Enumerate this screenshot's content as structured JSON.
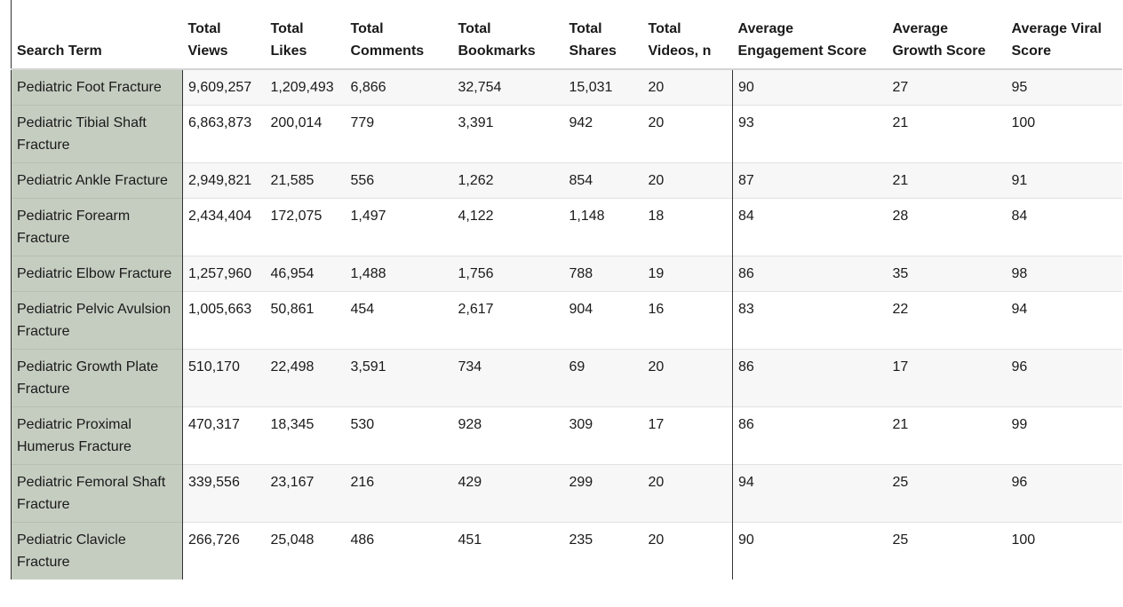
{
  "chart_data": {
    "type": "table",
    "columns": [
      "Search Term",
      "Total Views",
      "Total Likes",
      "Total Comments",
      "Total Bookmarks",
      "Total Shares",
      "Total Videos, n",
      "Average Engagement Score",
      "Average Growth Score",
      "Average Viral Score"
    ],
    "rows": [
      [
        "Pediatric Foot Fracture",
        "9,609,257",
        "1,209,493",
        "6,866",
        "32,754",
        "15,031",
        "20",
        "90",
        "27",
        "95"
      ],
      [
        "Pediatric Tibial Shaft Fracture",
        "6,863,873",
        "200,014",
        "779",
        "3,391",
        "942",
        "20",
        "93",
        "21",
        "100"
      ],
      [
        "Pediatric Ankle Fracture",
        "2,949,821",
        "21,585",
        "556",
        "1,262",
        "854",
        "20",
        "87",
        "21",
        "91"
      ],
      [
        "Pediatric Forearm Fracture",
        "2,434,404",
        "172,075",
        "1,497",
        "4,122",
        "1,148",
        "18",
        "84",
        "28",
        "84"
      ],
      [
        "Pediatric Elbow Fracture",
        "1,257,960",
        "46,954",
        "1,488",
        "1,756",
        "788",
        "19",
        "86",
        "35",
        "98"
      ],
      [
        "Pediatric Pelvic Avulsion Fracture",
        "1,005,663",
        "50,861",
        "454",
        "2,617",
        "904",
        "16",
        "83",
        "22",
        "94"
      ],
      [
        "Pediatric Growth Plate Fracture",
        "510,170",
        "22,498",
        "3,591",
        "734",
        "69",
        "20",
        "86",
        "17",
        "96"
      ],
      [
        "Pediatric Proximal Humerus Fracture",
        "470,317",
        "18,345",
        "530",
        "928",
        "309",
        "17",
        "86",
        "21",
        "99"
      ],
      [
        "Pediatric Femoral Shaft Fracture",
        "339,556",
        "23,167",
        "216",
        "429",
        "299",
        "20",
        "94",
        "25",
        "96"
      ],
      [
        "Pediatric Clavicle Fracture",
        "266,726",
        "25,048",
        "486",
        "451",
        "235",
        "20",
        "90",
        "25",
        "100"
      ]
    ]
  }
}
